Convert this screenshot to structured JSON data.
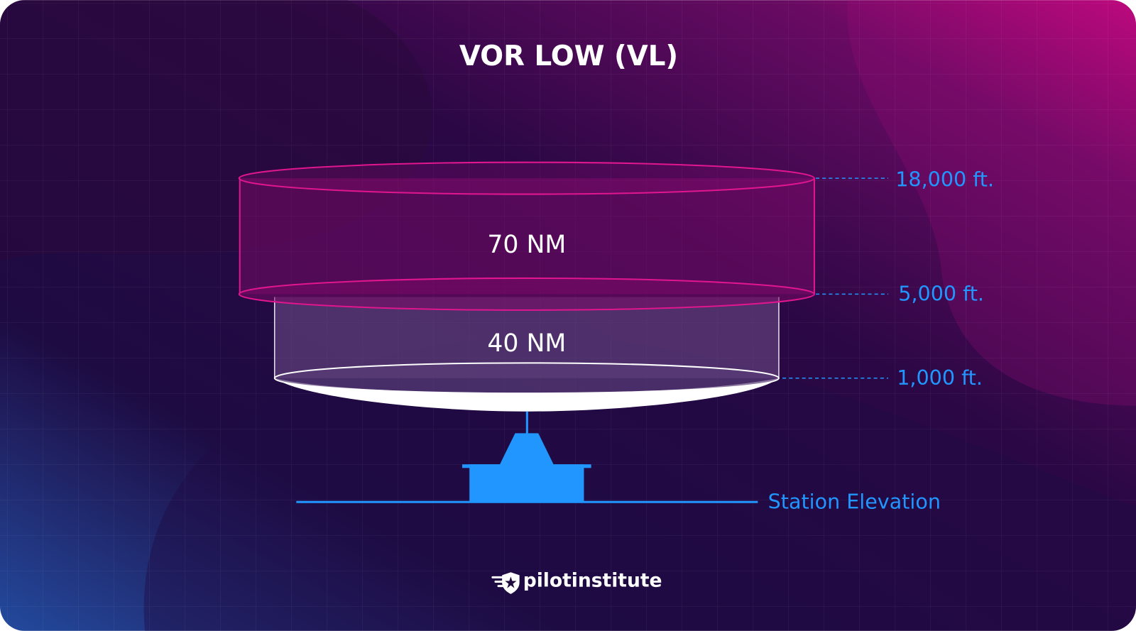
{
  "title": "VOR LOW (VL)",
  "upper_cylinder": {
    "label": "70 NM"
  },
  "lower_cylinder": {
    "label": "40 NM"
  },
  "altitudes": {
    "top": "18,000 ft.",
    "middle": "5,000 ft.",
    "bottom": "1,000 ft."
  },
  "station_label": "Station Elevation",
  "logo": {
    "text": "pilotinstitute",
    "icon": "winged-shield-star-icon"
  },
  "colors": {
    "accent_blue": "#2196ff",
    "magenta": "#e0168f",
    "background_dark": "#1f0a3e",
    "background_pink": "#c0087f"
  }
}
